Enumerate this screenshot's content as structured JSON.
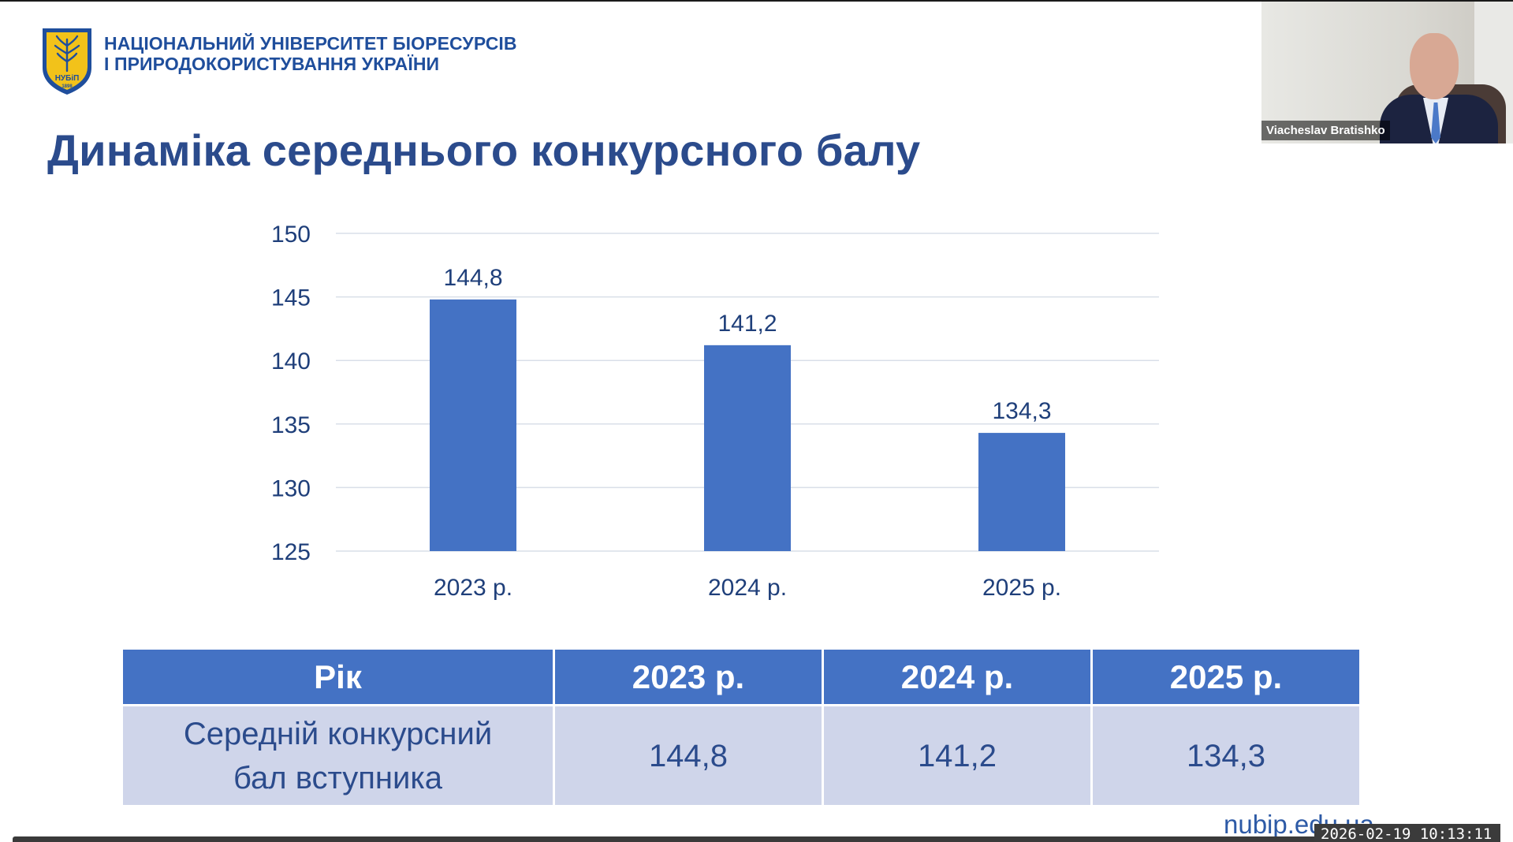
{
  "header": {
    "university_line1": "НАЦІОНАЛЬНИЙ УНІВЕРСИТЕТ БІОРЕСУРСІВ",
    "university_line2": "І ПРИРОДОКОРИСТУВАННЯ УКРАЇНИ",
    "logo_text": "НУБіП",
    "logo_year": "1898"
  },
  "slide": {
    "title": "Динаміка середнього конкурсного балу",
    "footer_site": "nubip.edu.ua"
  },
  "video": {
    "participant_name": "Viacheslav Bratishko"
  },
  "chart_data": {
    "type": "bar",
    "categories": [
      "2023 р.",
      "2024 р.",
      "2025 р."
    ],
    "values": [
      144.8,
      141.2,
      134.3
    ],
    "value_labels": [
      "144,8",
      "141,2",
      "134,3"
    ],
    "ylim": [
      125,
      150
    ],
    "yticks": [
      125,
      130,
      135,
      140,
      145,
      150
    ],
    "grid": true,
    "bar_color": "#4472c4",
    "title": "",
    "xlabel": "",
    "ylabel": ""
  },
  "table": {
    "headers": [
      "Рік",
      "2023 р.",
      "2024 р.",
      "2025 р."
    ],
    "row_label_line1": "Середній конкурсний",
    "row_label_line2": "бал вступника",
    "values": [
      "144,8",
      "141,2",
      "134,3"
    ]
  },
  "status": {
    "timestamp": "2026-02-19 10:13:11"
  },
  "colors": {
    "accent": "#4472c4",
    "title": "#2b4b8c",
    "table_body": "#cfd5ea"
  }
}
